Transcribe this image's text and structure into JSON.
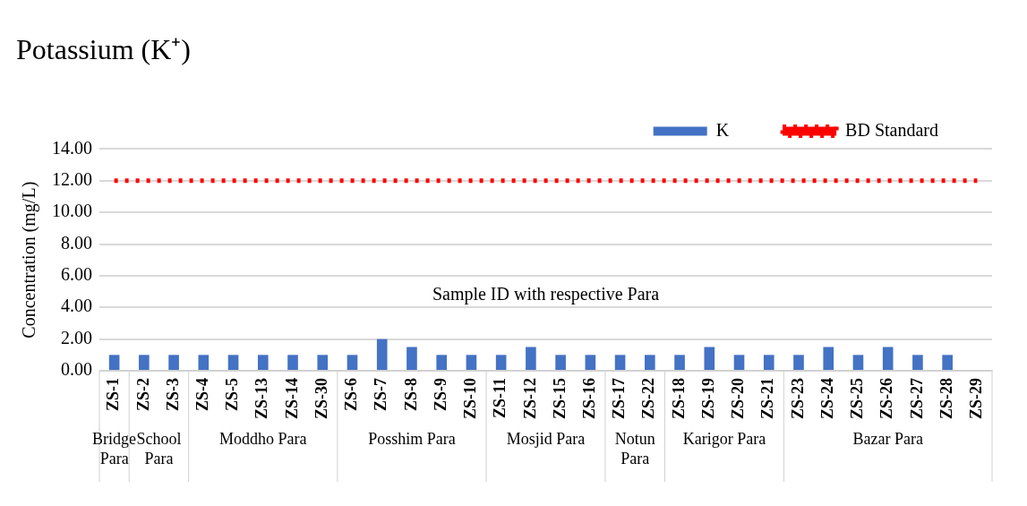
{
  "chart_data": {
    "type": "bar",
    "title": "Potassium (K⁺)",
    "xlabel": "Sample ID with respective Para",
    "ylabel": "Concentration (mg/L)",
    "categories": [
      "ZS-1",
      "ZS-2",
      "ZS-3",
      "ZS-4",
      "ZS-5",
      "ZS-13",
      "ZS-14",
      "ZS-30",
      "ZS-6",
      "ZS-7",
      "ZS-8",
      "ZS-9",
      "ZS-10",
      "ZS-11",
      "ZS-12",
      "ZS-15",
      "ZS-16",
      "ZS-17",
      "ZS-22",
      "ZS-18",
      "ZS-19",
      "ZS-20",
      "ZS-21",
      "ZS-23",
      "ZS-24",
      "ZS-25",
      "ZS-26",
      "ZS-27",
      "ZS-28",
      "ZS-29"
    ],
    "series": [
      {
        "name": "K",
        "color": "#4472c4",
        "values": [
          1,
          1,
          1,
          1,
          1,
          1,
          1,
          1,
          1,
          2,
          1.5,
          1,
          1,
          1,
          1.5,
          1,
          1,
          1,
          1,
          1,
          1.5,
          1,
          1,
          1,
          1.5,
          1,
          1.5,
          1,
          1,
          null
        ]
      },
      {
        "name": "BD Standard",
        "type": "line",
        "color": "#ff0000",
        "line_style": "dotted",
        "marker": "none",
        "values": [
          12,
          12,
          12,
          12,
          12,
          12,
          12,
          12,
          12,
          12,
          12,
          12,
          12,
          12,
          12,
          12,
          12,
          12,
          12,
          12,
          12,
          12,
          12,
          12,
          12,
          12,
          12,
          12,
          12,
          12
        ]
      }
    ],
    "ylim": [
      0,
      14
    ],
    "yticks": [
      {
        "value": 0,
        "label": "0.00"
      },
      {
        "value": 2,
        "label": "2.00"
      },
      {
        "value": 4,
        "label": "4.00"
      },
      {
        "value": 6,
        "label": "6.00"
      },
      {
        "value": 8,
        "label": "8.00"
      },
      {
        "value": 10,
        "label": "10.00"
      },
      {
        "value": 12,
        "label": "12.00"
      },
      {
        "value": 14,
        "label": "14.00"
      }
    ],
    "grid": "y",
    "legend": "top right",
    "annotations": [
      "Bridge Para",
      "School Para",
      "Moddho Para",
      "Posshim Para",
      "Mosjid Para",
      "Notun Para",
      "Karigor Para",
      "Bazar Para"
    ]
  }
}
